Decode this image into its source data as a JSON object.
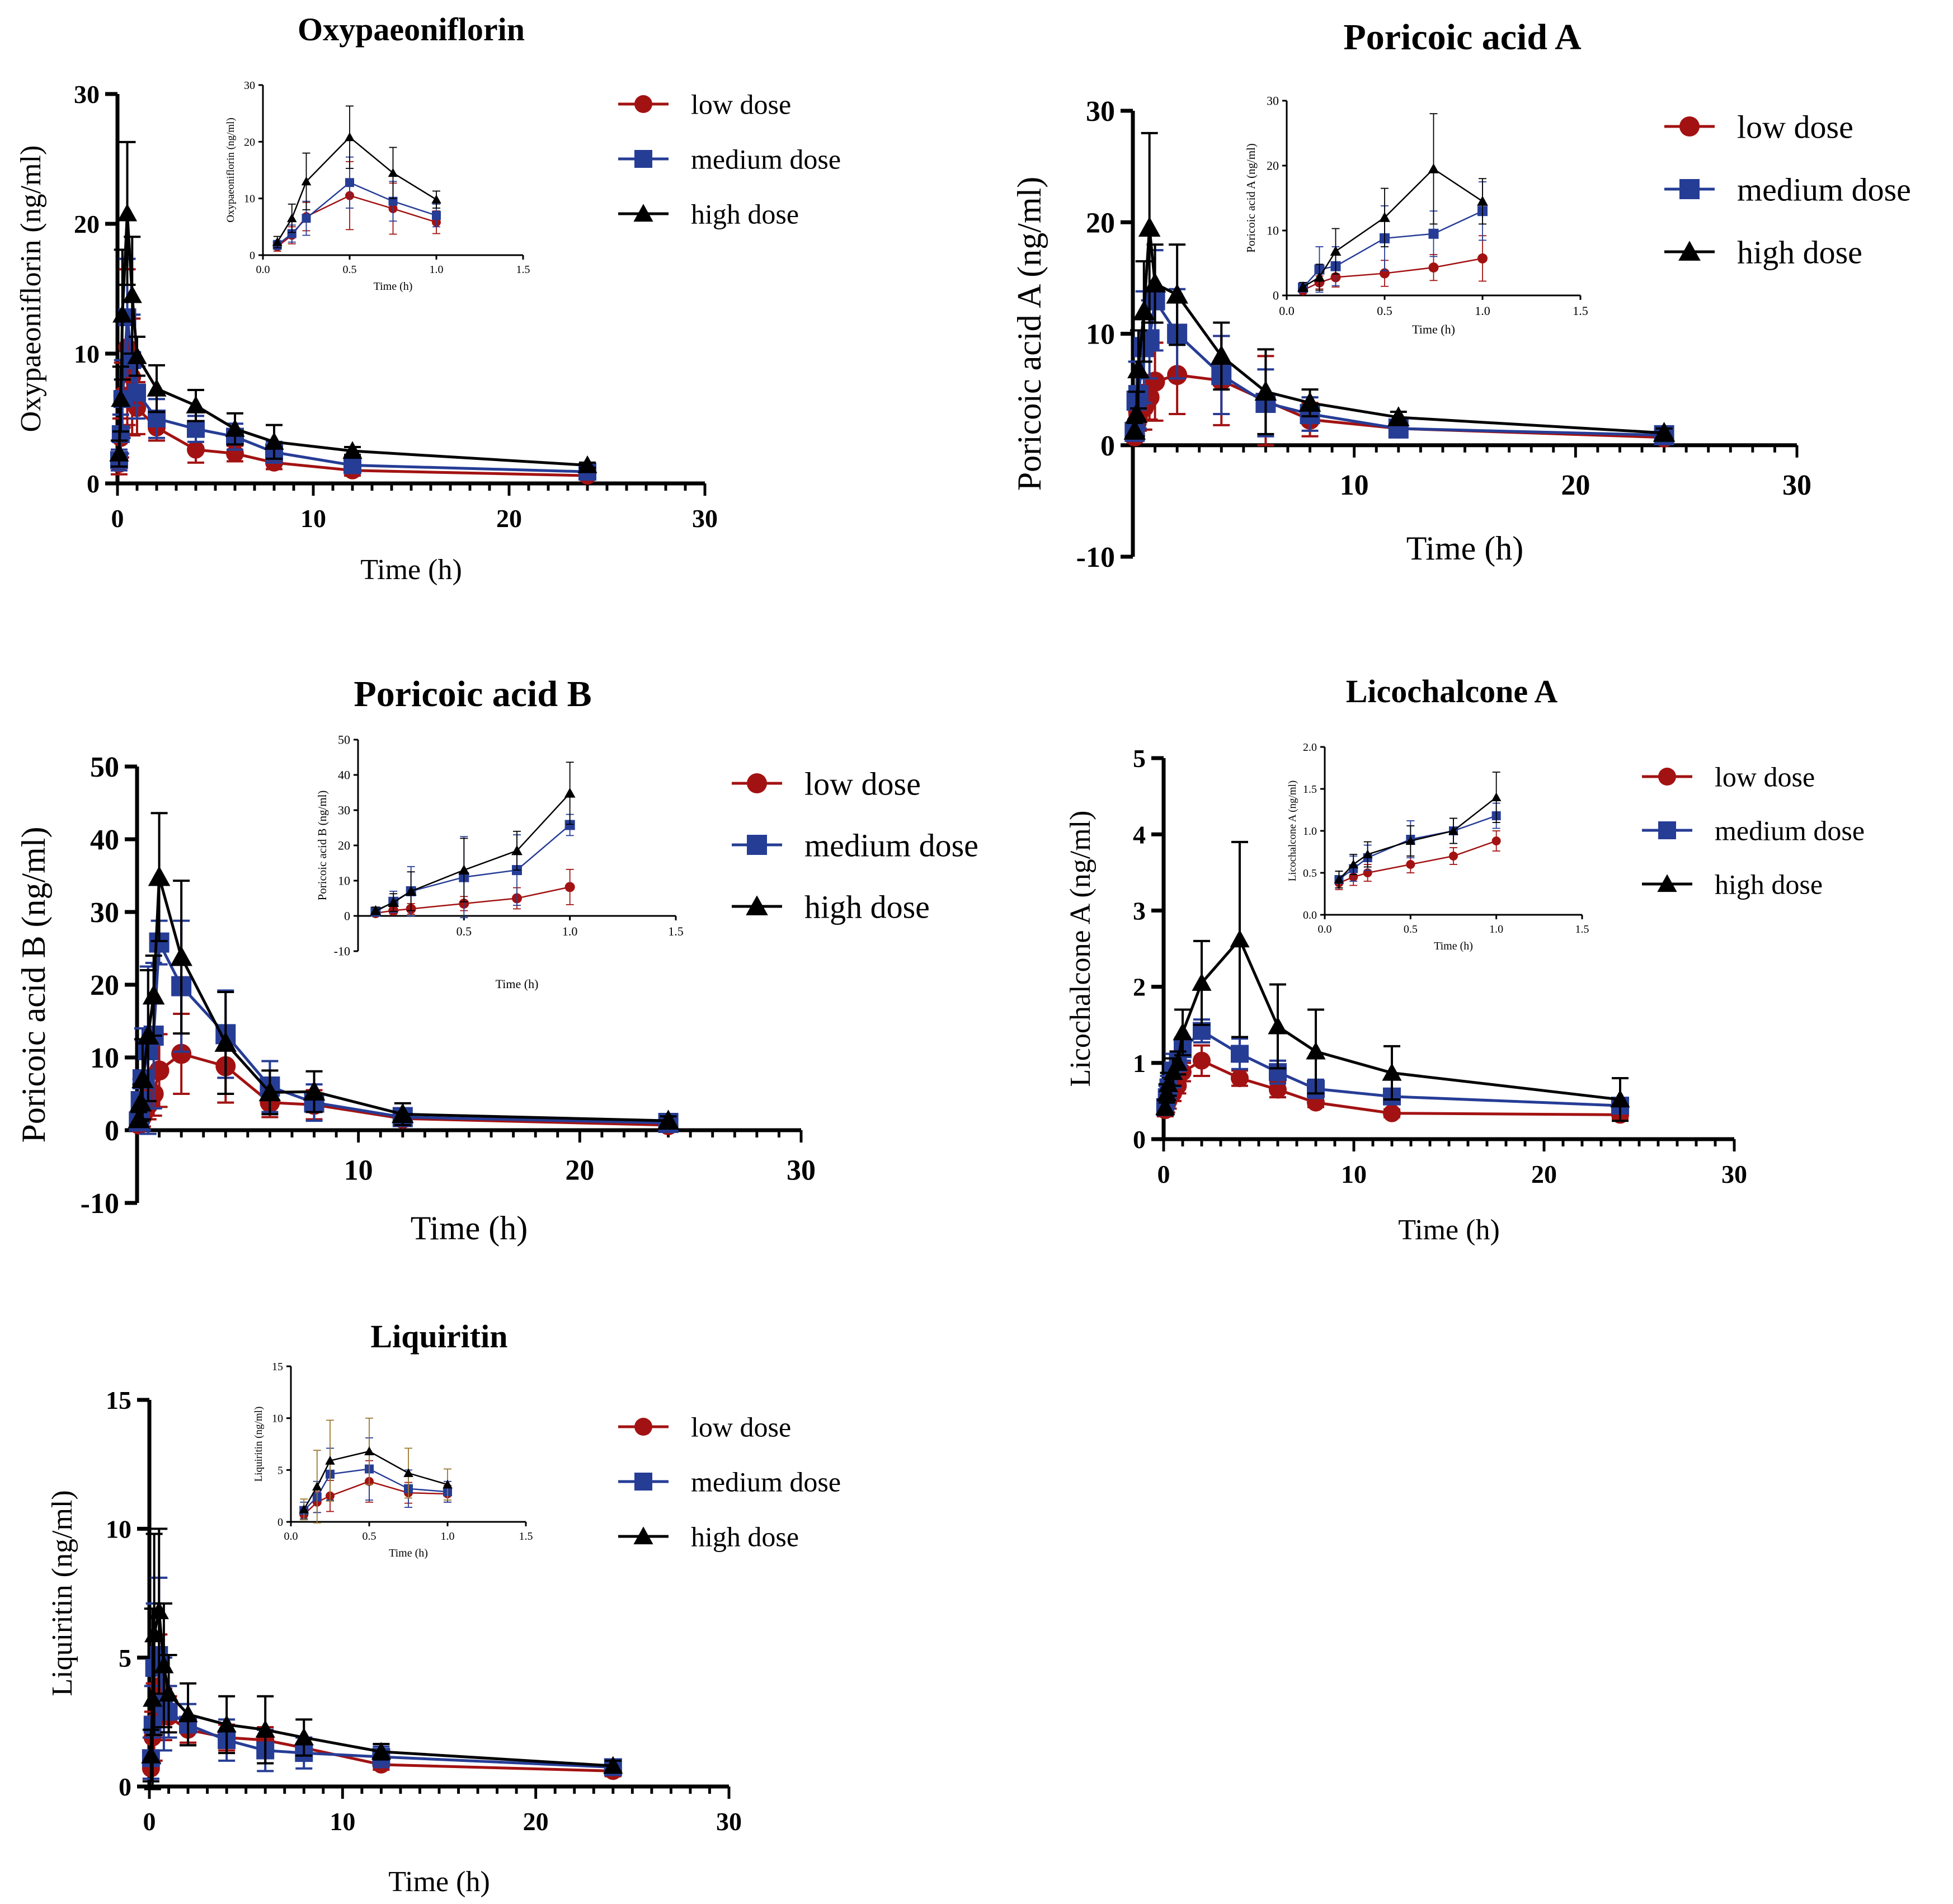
{
  "colors": {
    "low": "#a31212",
    "medium": "#263d96",
    "high": "#000000",
    "inset_error_high": "#9a7a2e"
  },
  "chart_data": [
    {
      "id": "oxypaeoniflorin",
      "type": "line",
      "title": "Oxypaeoniflorin",
      "xlabel": "Time (h)",
      "ylabel": "Oxypaeoniflorin (ng/ml)",
      "xlim": [
        0,
        30
      ],
      "ylim": [
        0,
        30
      ],
      "xticks": [
        0,
        10,
        20,
        30
      ],
      "yticks": [
        0,
        10,
        20,
        30
      ],
      "x": [
        0.083,
        0.167,
        0.25,
        0.5,
        0.75,
        1,
        2,
        4,
        6,
        8,
        12,
        24
      ],
      "series": [
        {
          "name": "low dose",
          "key": "low",
          "values": [
            1.5,
            3.5,
            6.8,
            10.5,
            8.2,
            5.8,
            4.3,
            2.6,
            2.3,
            1.6,
            1.0,
            0.6
          ],
          "errors": [
            0.8,
            1.5,
            2.5,
            6.0,
            4.5,
            2.0,
            1.0,
            1.0,
            0.6,
            0.5,
            0.4,
            0.3
          ]
        },
        {
          "name": "medium dose",
          "key": "medium",
          "values": [
            1.8,
            3.8,
            6.5,
            12.8,
            9.5,
            7.0,
            5.0,
            4.2,
            3.6,
            2.4,
            1.4,
            0.9
          ],
          "errors": [
            0.8,
            1.5,
            3.0,
            4.5,
            3.5,
            2.0,
            1.5,
            1.0,
            1.0,
            0.8,
            0.5,
            0.3
          ]
        },
        {
          "name": "high dose",
          "key": "high",
          "values": [
            2.3,
            6.5,
            13.0,
            20.8,
            14.5,
            9.8,
            7.3,
            6.0,
            4.2,
            3.2,
            2.5,
            1.4
          ],
          "errors": [
            1.0,
            2.5,
            5.0,
            5.5,
            4.5,
            1.5,
            1.8,
            1.2,
            1.2,
            1.3,
            0.3,
            0.2
          ]
        }
      ],
      "inset": {
        "xlabel": "Time (h)",
        "ylabel": "Oxypaeoniflorin (ng/ml)",
        "xlim": [
          0,
          1.5
        ],
        "ylim": [
          0,
          30
        ],
        "xticks": [
          "0.0",
          "0.5",
          "1.0",
          "1.5"
        ],
        "yticks": [
          "0",
          "10",
          "20",
          "30"
        ]
      }
    },
    {
      "id": "poricoic_a",
      "type": "line",
      "title": "Poricoic acid A",
      "xlabel": "Time (h)",
      "ylabel": "Poricoic acid A  (ng/ml)",
      "xlim": [
        0,
        30
      ],
      "ylim": [
        -10,
        30
      ],
      "xticks": [
        10,
        20,
        30
      ],
      "yticks": [
        -10,
        0,
        10,
        20,
        30
      ],
      "x": [
        0.083,
        0.167,
        0.25,
        0.5,
        0.75,
        1,
        2,
        4,
        6,
        8,
        12,
        24
      ],
      "series": [
        {
          "name": "low dose",
          "key": "low",
          "values": [
            0.8,
            2.0,
            2.8,
            3.4,
            4.3,
            5.7,
            6.3,
            5.8,
            4.0,
            2.3,
            1.5,
            0.7
          ],
          "errors": [
            0.5,
            1.0,
            1.5,
            2.0,
            2.0,
            3.5,
            3.5,
            4.0,
            4.0,
            1.5,
            0.5,
            0.3
          ]
        },
        {
          "name": "medium dose",
          "key": "medium",
          "values": [
            1.2,
            4.0,
            4.5,
            8.8,
            9.5,
            13.0,
            10.0,
            6.3,
            3.8,
            2.8,
            1.5,
            0.9
          ],
          "errors": [
            0.6,
            3.5,
            3.0,
            5.0,
            3.5,
            4.5,
            4.0,
            3.5,
            3.0,
            1.5,
            0.5,
            0.4
          ]
        },
        {
          "name": "high dose",
          "key": "high",
          "values": [
            1.3,
            2.8,
            6.8,
            12.0,
            19.5,
            14.5,
            13.5,
            8.0,
            4.8,
            3.8,
            2.5,
            1.1
          ],
          "errors": [
            0.7,
            2.0,
            3.5,
            4.5,
            8.5,
            3.5,
            4.5,
            3.0,
            3.8,
            1.2,
            0.5,
            0.4
          ]
        }
      ],
      "inset": {
        "xlabel": "Time (h)",
        "ylabel": "Poricoic acid A (ng/ml)",
        "xlim": [
          0,
          1.5
        ],
        "ylim": [
          0,
          30
        ],
        "xticks": [
          "0.0",
          "0.5",
          "1.0",
          "1.5"
        ],
        "yticks": [
          "0",
          "10",
          "20",
          "30"
        ]
      }
    },
    {
      "id": "poricoic_b",
      "type": "line",
      "title": "Poricoic acid B",
      "xlabel": "Time (h)",
      "ylabel": "Poricoic acid B (ng/ml)",
      "xlim": [
        0,
        30
      ],
      "ylim": [
        -10,
        50
      ],
      "xticks": [
        10,
        20,
        30
      ],
      "yticks": [
        -10,
        0,
        10,
        20,
        30,
        40,
        50
      ],
      "x": [
        0.083,
        0.167,
        0.25,
        0.5,
        0.75,
        1,
        2,
        4,
        6,
        8,
        12,
        24
      ],
      "series": [
        {
          "name": "low dose",
          "key": "low",
          "values": [
            0.8,
            1.5,
            2.0,
            3.5,
            5.0,
            8.2,
            10.5,
            8.8,
            3.8,
            3.5,
            1.6,
            0.7
          ],
          "errors": [
            0.6,
            1.0,
            1.5,
            2.0,
            3.0,
            5.0,
            5.5,
            5.0,
            2.0,
            2.0,
            0.8,
            0.4
          ]
        },
        {
          "name": "medium dose",
          "key": "medium",
          "values": [
            1.2,
            4.0,
            7.0,
            11.0,
            13.0,
            25.8,
            19.8,
            13.2,
            6.0,
            3.8,
            1.8,
            1.0
          ],
          "errors": [
            0.8,
            3.0,
            7.0,
            11.5,
            10.0,
            3.0,
            9.0,
            6.0,
            3.5,
            2.5,
            1.0,
            0.5
          ]
        },
        {
          "name": "high dose",
          "key": "high",
          "values": [
            1.5,
            3.8,
            7.0,
            13.0,
            18.5,
            34.8,
            23.8,
            12.0,
            5.2,
            5.3,
            2.2,
            1.3
          ],
          "errors": [
            1.0,
            2.5,
            5.5,
            9.0,
            5.5,
            8.8,
            10.5,
            7.0,
            3.0,
            2.8,
            1.5,
            0.6
          ]
        }
      ],
      "inset": {
        "xlabel": "Time (h)",
        "ylabel": "Poricoic acid B (ng/ml)",
        "xlim": [
          0,
          1.5
        ],
        "ylim": [
          -10,
          50
        ],
        "xticks": [
          "0.5",
          "1.0",
          "1.5"
        ],
        "yticks": [
          "-10",
          "0",
          "10",
          "20",
          "30",
          "40",
          "50"
        ]
      }
    },
    {
      "id": "licochalcone_a",
      "type": "line",
      "title": "Licochalcone A",
      "xlabel": "Time (h)",
      "ylabel": "Licochalcone A (ng/ml)",
      "xlim": [
        0,
        30
      ],
      "ylim": [
        0,
        5
      ],
      "xticks": [
        0,
        10,
        20,
        30
      ],
      "yticks": [
        0,
        1,
        2,
        3,
        4,
        5
      ],
      "x": [
        0.083,
        0.167,
        0.25,
        0.5,
        0.75,
        1,
        2,
        4,
        6,
        8,
        12,
        24
      ],
      "series": [
        {
          "name": "low dose",
          "key": "low",
          "values": [
            0.38,
            0.45,
            0.5,
            0.6,
            0.7,
            0.88,
            1.03,
            0.8,
            0.65,
            0.48,
            0.34,
            0.32
          ],
          "errors": [
            0.08,
            0.1,
            0.1,
            0.1,
            0.1,
            0.12,
            0.2,
            0.1,
            0.1,
            0.06,
            0.05,
            0.05
          ]
        },
        {
          "name": "medium dose",
          "key": "medium",
          "values": [
            0.42,
            0.55,
            0.68,
            0.9,
            1.0,
            1.18,
            1.42,
            1.12,
            0.88,
            0.66,
            0.56,
            0.44
          ],
          "errors": [
            0.1,
            0.15,
            0.15,
            0.22,
            0.15,
            0.15,
            0.15,
            0.2,
            0.15,
            0.12,
            0.1,
            0.1
          ]
        },
        {
          "name": "high dose",
          "key": "high",
          "values": [
            0.42,
            0.6,
            0.72,
            0.88,
            1.0,
            1.4,
            2.05,
            2.62,
            1.48,
            1.15,
            0.87,
            0.52
          ],
          "errors": [
            0.1,
            0.12,
            0.15,
            0.18,
            0.15,
            0.3,
            0.55,
            1.28,
            0.55,
            0.55,
            0.35,
            0.28
          ]
        }
      ],
      "inset": {
        "xlabel": "Time (h)",
        "ylabel": "Licochalcone A (ng/ml)",
        "xlim": [
          0,
          1.5
        ],
        "ylim": [
          0,
          2
        ],
        "xticks": [
          "0.0",
          "0.5",
          "1.0",
          "1.5"
        ],
        "yticks": [
          "0.0",
          "0.5",
          "1.0",
          "1.5",
          "2.0"
        ]
      }
    },
    {
      "id": "liquiritin",
      "type": "line",
      "title": "Liquiritin",
      "xlabel": "Time (h)",
      "ylabel": "Liquiritin (ng/ml)",
      "xlim": [
        0,
        30
      ],
      "ylim": [
        0,
        15
      ],
      "xticks": [
        0,
        10,
        20,
        30
      ],
      "yticks": [
        0,
        5,
        10,
        15
      ],
      "x": [
        0.083,
        0.167,
        0.25,
        0.5,
        0.75,
        1,
        2,
        4,
        6,
        8,
        12,
        24
      ],
      "series": [
        {
          "name": "low dose",
          "key": "low",
          "values": [
            0.7,
            1.9,
            2.5,
            3.9,
            2.8,
            2.7,
            2.2,
            1.9,
            1.8,
            1.5,
            0.85,
            0.6
          ],
          "errors": [
            0.4,
            1.0,
            1.5,
            2.0,
            1.0,
            0.8,
            0.5,
            0.5,
            0.5,
            0.4,
            0.2,
            0.2
          ]
        },
        {
          "name": "medium dose",
          "key": "medium",
          "values": [
            1.1,
            2.4,
            4.6,
            5.1,
            3.2,
            2.9,
            2.4,
            1.8,
            1.4,
            1.3,
            1.15,
            0.75
          ],
          "errors": [
            0.8,
            1.5,
            2.5,
            3.0,
            1.8,
            1.0,
            0.8,
            0.8,
            0.8,
            0.6,
            0.4,
            0.2
          ]
        },
        {
          "name": "high dose",
          "key": "high",
          "values": [
            1.2,
            3.4,
            5.9,
            6.8,
            4.7,
            3.6,
            2.8,
            2.4,
            2.2,
            1.9,
            1.35,
            0.8
          ],
          "errors": [
            1.0,
            3.5,
            3.9,
            3.2,
            2.4,
            1.5,
            1.2,
            1.1,
            1.3,
            0.7,
            0.3,
            0.2
          ]
        }
      ],
      "inset": {
        "xlabel": "Time (h)",
        "ylabel": "Liquiritin (ng/ml)",
        "xlim": [
          0,
          1.5
        ],
        "ylim": [
          0,
          15
        ],
        "xticks": [
          "0.0",
          "0.5",
          "1.0",
          "1.5"
        ],
        "yticks": [
          "0",
          "5",
          "10",
          "15"
        ]
      }
    }
  ]
}
